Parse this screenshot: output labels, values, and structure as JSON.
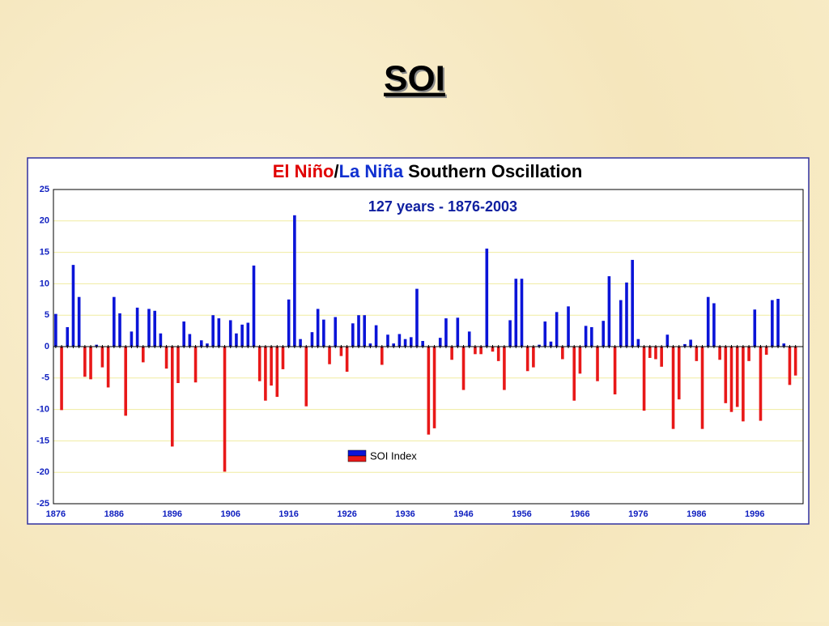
{
  "slide_title": "SOI",
  "chart_data": {
    "type": "bar",
    "title_parts": [
      {
        "text": "El Niño",
        "color": "#e00000"
      },
      {
        "text": "/",
        "color": "#000000"
      },
      {
        "text": "La Niña",
        "color": "#1030d0"
      },
      {
        "text": " Southern Oscillation",
        "color": "#000000"
      }
    ],
    "subtitle": "127 years - 1876-2003",
    "x": [
      1876,
      1877,
      1878,
      1879,
      1880,
      1881,
      1882,
      1883,
      1884,
      1885,
      1886,
      1887,
      1888,
      1889,
      1890,
      1891,
      1892,
      1893,
      1894,
      1895,
      1896,
      1897,
      1898,
      1899,
      1900,
      1901,
      1902,
      1903,
      1904,
      1905,
      1906,
      1907,
      1908,
      1909,
      1910,
      1911,
      1912,
      1913,
      1914,
      1915,
      1916,
      1917,
      1918,
      1919,
      1920,
      1921,
      1922,
      1923,
      1924,
      1925,
      1926,
      1927,
      1928,
      1929,
      1930,
      1931,
      1932,
      1933,
      1934,
      1935,
      1936,
      1937,
      1938,
      1939,
      1940,
      1941,
      1942,
      1943,
      1944,
      1945,
      1946,
      1947,
      1948,
      1949,
      1950,
      1951,
      1952,
      1953,
      1954,
      1955,
      1956,
      1957,
      1958,
      1959,
      1960,
      1961,
      1962,
      1963,
      1964,
      1965,
      1966,
      1967,
      1968,
      1969,
      1970,
      1971,
      1972,
      1973,
      1974,
      1975,
      1976,
      1977,
      1978,
      1979,
      1980,
      1981,
      1982,
      1983,
      1984,
      1985,
      1986,
      1987,
      1988,
      1989,
      1990,
      1991,
      1992,
      1993,
      1994,
      1995,
      1996,
      1997,
      1998,
      1999,
      2000,
      2001,
      2002,
      2003
    ],
    "series": [
      {
        "name": "SOI Index",
        "positive_color": "#0a14d8",
        "negative_color": "#e81818",
        "values": [
          5.2,
          -10.1,
          3.1,
          13,
          7.9,
          -4.8,
          -5.2,
          0.3,
          -3.3,
          -6.5,
          7.9,
          5.3,
          -11,
          2.4,
          6.2,
          -2.5,
          6.0,
          5.7,
          2.1,
          -3.5,
          -15.9,
          -5.8,
          4.0,
          2.0,
          -5.7,
          1.0,
          0.5,
          5.0,
          4.5,
          -19.9,
          4.2,
          2.1,
          3.5,
          3.8,
          12.9,
          -5.5,
          -8.6,
          -6.2,
          -8.0,
          -3.6,
          7.5,
          20.9,
          1.2,
          -9.5,
          2.3,
          6.0,
          4.3,
          -2.8,
          4.7,
          -1.5,
          -4.0,
          3.7,
          5.0,
          5.0,
          0.5,
          3.4,
          -2.9,
          1.9,
          0.5,
          2.0,
          1.2,
          1.5,
          9.2,
          0.9,
          -14,
          -13,
          1.4,
          4.5,
          -2.1,
          4.6,
          -6.9,
          2.4,
          -1.2,
          -1.2,
          15.6,
          -0.8,
          -2.3,
          -6.9,
          4.2,
          10.8,
          10.8,
          -3.9,
          -3.3,
          0.3,
          4.0,
          0.8,
          5.5,
          -2.0,
          6.4,
          -8.6,
          -4.3,
          3.3,
          3.1,
          -5.5,
          4.1,
          11.2,
          -7.6,
          7.4,
          10.2,
          13.8,
          1.2,
          -10.2,
          -1.8,
          -2.0,
          -3.2,
          1.9,
          -13.1,
          -8.4,
          0.4,
          1.1,
          -2.3,
          -13.1,
          7.9,
          6.9,
          -2.1,
          -9.0,
          -10.4,
          -9.6,
          -11.9,
          -2.3,
          5.9,
          -11.8,
          -1.3,
          7.4,
          7.6,
          0.5,
          -6.1,
          -4.6
        ]
      }
    ],
    "xlim": [
      1875.6,
      2004.3
    ],
    "xticks": [
      1876,
      1886,
      1896,
      1906,
      1916,
      1926,
      1936,
      1946,
      1956,
      1966,
      1976,
      1986,
      1996
    ],
    "ylim": [
      -25,
      25
    ],
    "yticks": [
      -25,
      -20,
      -15,
      -10,
      -5,
      0,
      5,
      10,
      15,
      20,
      25
    ],
    "grid": true,
    "grid_color": "#f0eca0"
  }
}
